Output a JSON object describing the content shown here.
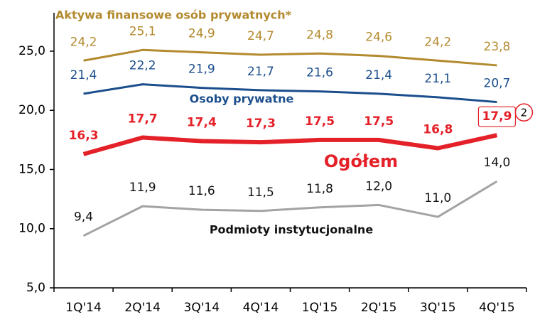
{
  "chart_data": {
    "type": "line",
    "categories": [
      "1Q'14",
      "2Q'14",
      "3Q'14",
      "4Q'14",
      "1Q'15",
      "2Q'15",
      "3Q'15",
      "4Q'15"
    ],
    "series": [
      {
        "name": "Aktywa finansowe osób prywatnych*",
        "color": "#b38a2e",
        "label_color": "#b38a2e",
        "values": [
          24.2,
          25.1,
          24.9,
          24.7,
          24.8,
          24.6,
          24.2,
          23.8
        ],
        "value_labels": [
          "24,2",
          "25,1",
          "24,9",
          "24,7",
          "24,8",
          "24,6",
          "24,2",
          "23,8"
        ]
      },
      {
        "name": "Osoby prywatne",
        "color": "#1b4e8c",
        "label_color": "#1b4e8c",
        "values": [
          21.4,
          22.2,
          21.9,
          21.7,
          21.6,
          21.4,
          21.1,
          20.7
        ],
        "value_labels": [
          "21,4",
          "22,2",
          "21,9",
          "21,7",
          "21,6",
          "21,4",
          "21,1",
          "20,7"
        ]
      },
      {
        "name": "Ogółem",
        "color": "#e42129",
        "label_color": "#e42129",
        "values": [
          16.3,
          17.7,
          17.4,
          17.3,
          17.5,
          17.5,
          16.8,
          17.9
        ],
        "value_labels": [
          "16,3",
          "17,7",
          "17,4",
          "17,3",
          "17,5",
          "17,5",
          "16,8",
          "17,9"
        ]
      },
      {
        "name": "Podmioty instytucjonalne",
        "color": "#a3a3a3",
        "label_color": "#111111",
        "values": [
          9.4,
          11.9,
          11.6,
          11.5,
          11.8,
          12.0,
          11.0,
          14.0
        ],
        "value_labels": [
          "9,4",
          "11,9",
          "11,6",
          "11,5",
          "11,8",
          "12,0",
          "11,0",
          "14,0"
        ]
      }
    ],
    "annotation": "2",
    "ylim": [
      5,
      28
    ],
    "yticks": [
      {
        "value": 5,
        "label": "5,0"
      },
      {
        "value": 10,
        "label": "10,0"
      },
      {
        "value": 15,
        "label": "15,0"
      },
      {
        "value": 20,
        "label": "20,0"
      },
      {
        "value": 25,
        "label": "25,0"
      }
    ],
    "grid": false
  }
}
